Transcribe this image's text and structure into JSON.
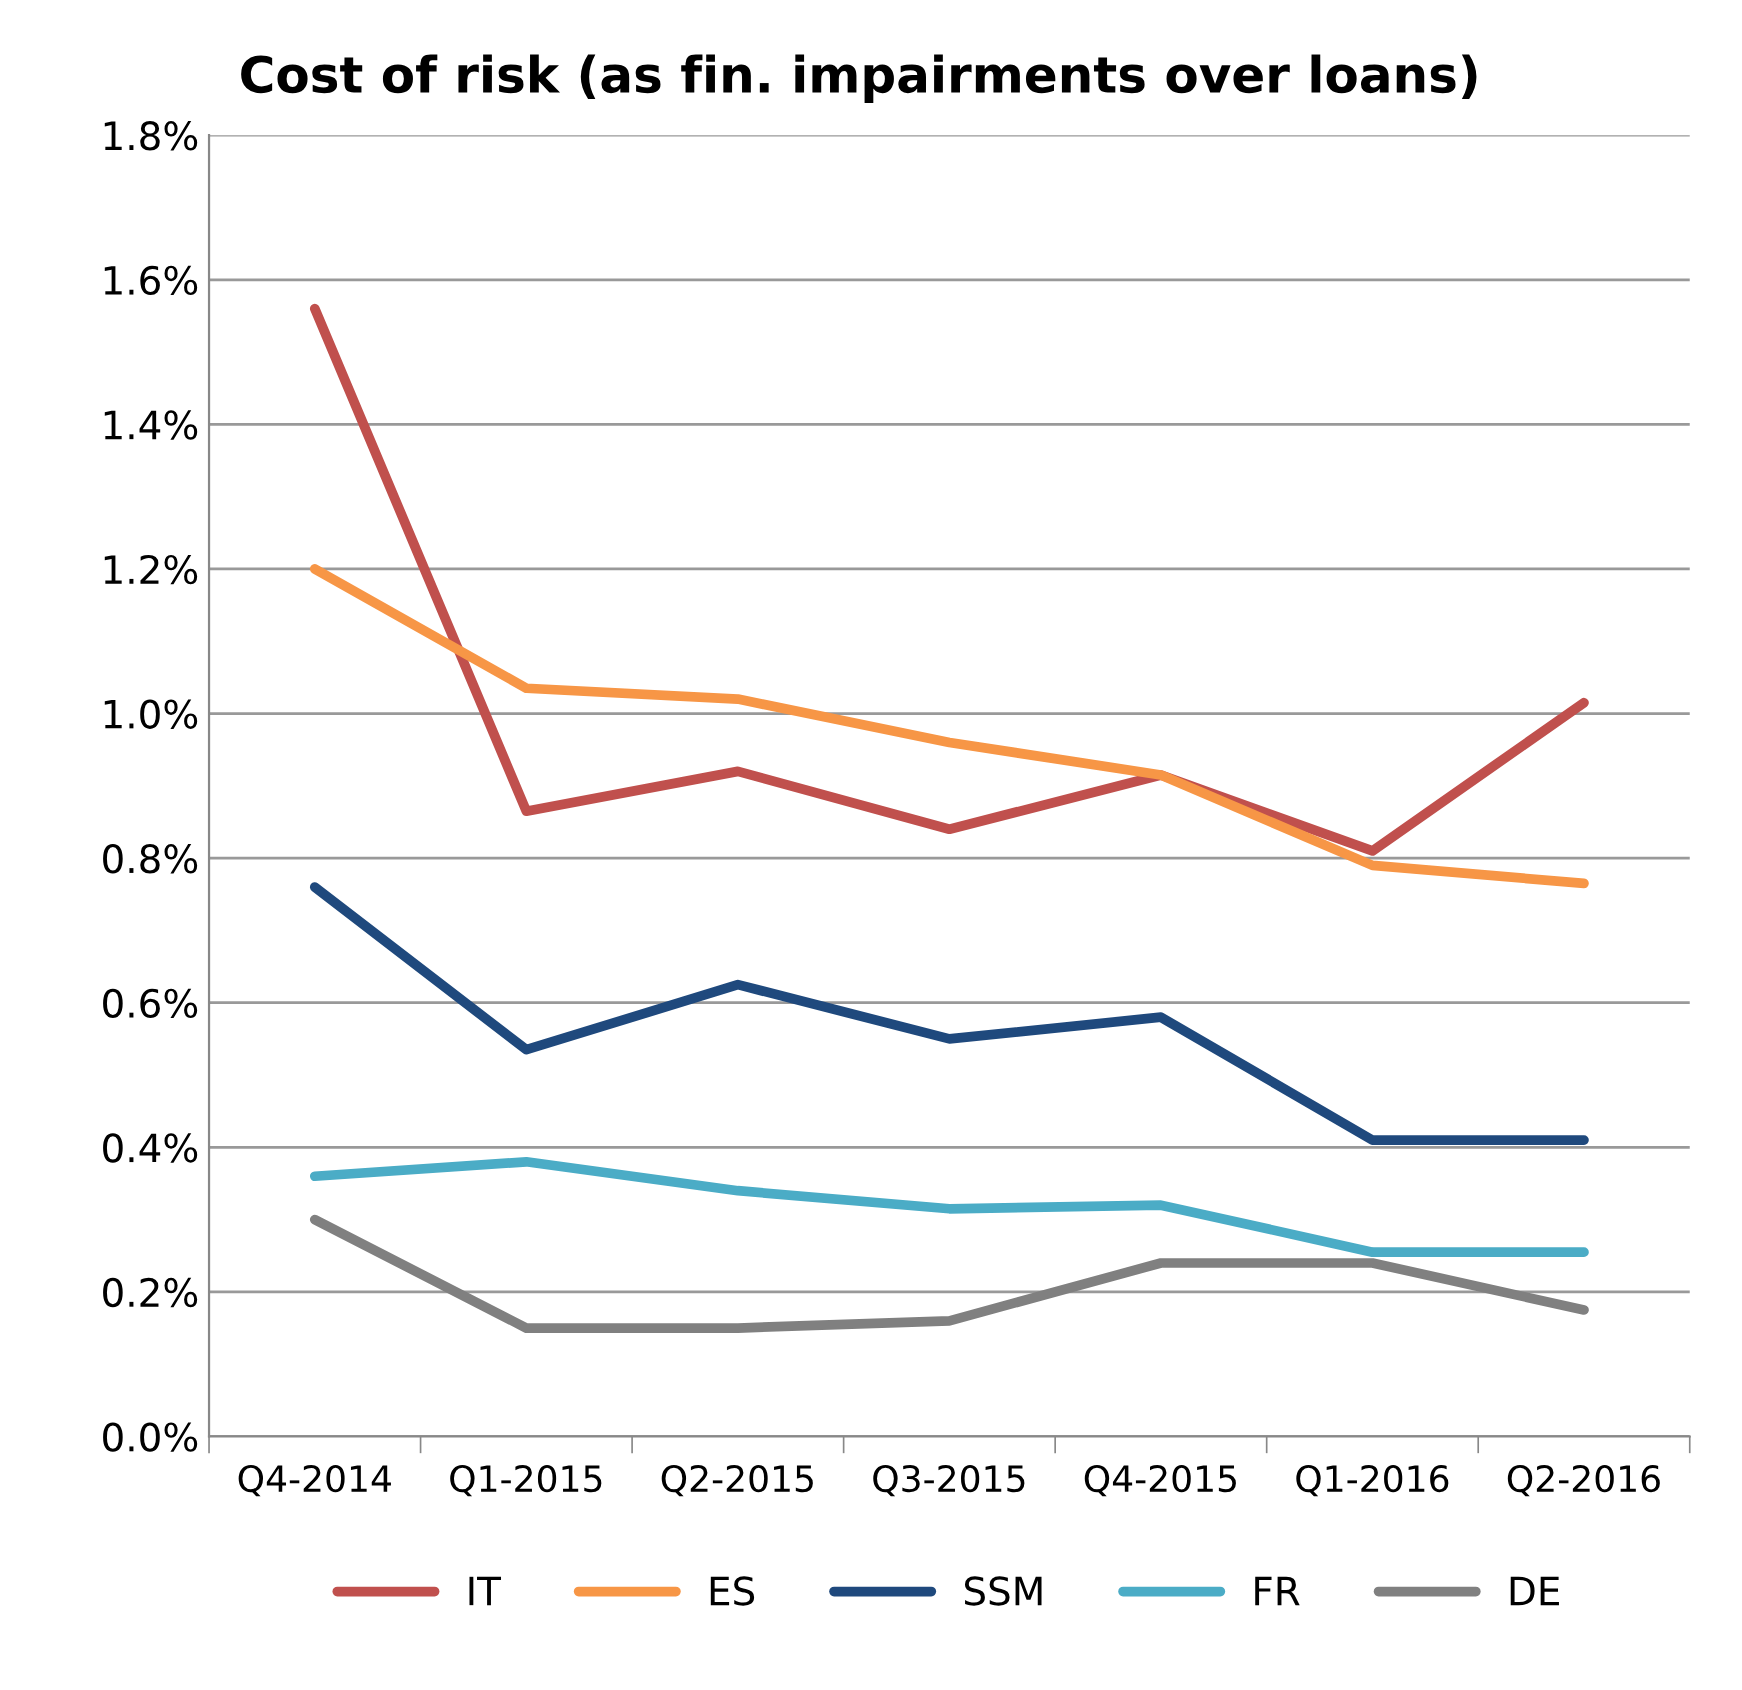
{
  "chart_data": {
    "type": "line",
    "title": "Cost of risk (as fin. impairments over loans)",
    "categories": [
      "Q4-2014",
      "Q1-2015",
      "Q2-2015",
      "Q3-2015",
      "Q4-2015",
      "Q1-2016",
      "Q2-2016"
    ],
    "series": [
      {
        "name": "IT",
        "color": "#c0504d",
        "values": [
          1.56,
          0.865,
          0.92,
          0.84,
          0.915,
          0.81,
          1.015
        ]
      },
      {
        "name": "ES",
        "color": "#f79646",
        "values": [
          1.2,
          1.035,
          1.02,
          0.96,
          0.915,
          0.79,
          0.765
        ]
      },
      {
        "name": "SSM",
        "color": "#1f497d",
        "values": [
          0.76,
          0.535,
          0.625,
          0.55,
          0.58,
          0.41,
          0.41
        ]
      },
      {
        "name": "FR",
        "color": "#4bacc6",
        "values": [
          0.36,
          0.38,
          0.34,
          0.315,
          0.32,
          0.255,
          0.255
        ]
      },
      {
        "name": "DE",
        "color": "#808080",
        "values": [
          0.3,
          0.15,
          0.15,
          0.16,
          0.24,
          0.24,
          0.175
        ]
      }
    ],
    "ylim": [
      0,
      1.8
    ],
    "yticks": [
      {
        "value": 0,
        "label": "0.0%"
      },
      {
        "value": 0.2,
        "label": "0.2%"
      },
      {
        "value": 0.4,
        "label": "0.4%"
      },
      {
        "value": 0.6,
        "label": "0.6%"
      },
      {
        "value": 0.8,
        "label": "0.8%"
      },
      {
        "value": 1.0,
        "label": "1.0%"
      },
      {
        "value": 1.2,
        "label": "1.2%"
      },
      {
        "value": 1.4,
        "label": "1.4%"
      },
      {
        "value": 1.6,
        "label": "1.6%"
      },
      {
        "value": 1.8,
        "label": "1.8%"
      }
    ],
    "grid": "y",
    "legend": "bottom",
    "marker": "none",
    "line_style": "solid"
  }
}
